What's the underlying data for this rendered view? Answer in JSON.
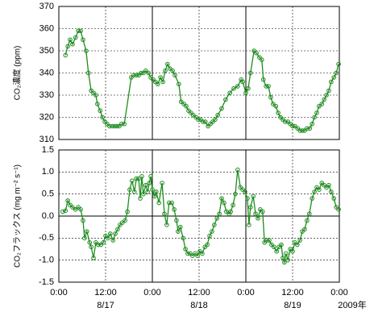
{
  "chart_data": [
    {
      "type": "line",
      "ylabel": "CO₂濃度 (ppm)",
      "color": "#1e8c1e",
      "xlim": [
        0,
        72
      ],
      "ylim": [
        310,
        370
      ],
      "yticks": [
        310,
        320,
        330,
        340,
        350,
        360,
        370
      ],
      "x": [
        1.7,
        2.3,
        2.9,
        3.5,
        4.3,
        5.0,
        5.6,
        6.2,
        7.0,
        7.6,
        8.3,
        8.9,
        9.5,
        9.9,
        10.6,
        11.2,
        11.8,
        12.4,
        13.0,
        13.7,
        14.3,
        14.9,
        15.5,
        16.1,
        16.8,
        18.6,
        19.2,
        19.9,
        20.5,
        21.1,
        21.7,
        22.3,
        23.0,
        23.6,
        24.2,
        24.8,
        25.4,
        26.1,
        26.7,
        27.3,
        27.9,
        28.5,
        29.2,
        29.8,
        30.8,
        31.4,
        32.1,
        32.7,
        33.3,
        33.9,
        34.5,
        35.2,
        35.8,
        36.4,
        37.0,
        37.6,
        38.3,
        38.9,
        39.5,
        40.1,
        40.8,
        41.8,
        42.8,
        43.9,
        44.9,
        45.9,
        46.8,
        47.2,
        48.0,
        48.6,
        49.2,
        50.1,
        50.7,
        51.5,
        52.1,
        52.5,
        53.2,
        53.8,
        54.4,
        55.0,
        55.7,
        56.3,
        56.9,
        57.5,
        58.1,
        58.8,
        59.4,
        60.0,
        60.6,
        61.3,
        61.9,
        62.5,
        63.1,
        63.7,
        64.4,
        65.0,
        65.6,
        66.2,
        66.8,
        67.5,
        68.1,
        68.7,
        69.3,
        69.9,
        70.6,
        71.2,
        71.8
      ],
      "values": [
        348,
        352,
        355,
        353,
        356,
        359,
        359,
        355,
        350,
        340,
        332,
        331,
        330,
        326,
        323,
        320,
        318,
        317,
        316,
        316,
        316,
        316,
        316,
        317,
        317,
        338,
        339,
        339,
        339,
        340,
        340,
        341,
        340,
        338,
        337,
        336,
        335,
        338,
        336,
        341,
        344,
        342,
        341,
        339,
        335,
        327,
        326,
        325,
        323,
        322,
        321,
        320,
        319,
        319,
        318,
        318,
        316,
        317,
        318,
        319,
        321,
        324,
        328,
        331,
        333,
        334,
        337,
        336,
        331,
        333,
        340,
        350,
        349,
        347,
        346,
        337,
        334,
        334,
        329,
        326,
        325,
        322,
        320,
        319,
        318,
        318,
        317,
        316,
        316,
        315,
        314,
        314,
        314,
        315,
        315,
        317,
        320,
        322,
        325,
        326,
        328,
        330,
        332,
        336,
        338,
        340,
        344
      ]
    },
    {
      "type": "line",
      "ylabel": "CO₂フラックス (mg m⁻² s⁻¹)",
      "color": "#1e8c1e",
      "xlabel": "2009年",
      "xlim": [
        0,
        72
      ],
      "ylim": [
        -1.5,
        1.5
      ],
      "yticks": [
        -1.5,
        {
          "value": -1,
          "label": "-1.0"
        },
        -0.5,
        {
          "value": 0,
          "label": "0.0"
        },
        0.5,
        {
          "value": 1,
          "label": "1.0"
        },
        1.5
      ],
      "xticks": [
        {
          "value": 0,
          "label": "0:00"
        },
        {
          "value": 12,
          "label": "12:00"
        },
        {
          "value": 24,
          "label": "0:00"
        },
        {
          "value": 36,
          "label": "12:00"
        },
        {
          "value": 48,
          "label": "0:00"
        },
        {
          "value": 60,
          "label": "12:00"
        },
        {
          "value": 72,
          "label": "0:00"
        }
      ],
      "x_date_labels": [
        {
          "value": 12,
          "label": "8/17"
        },
        {
          "value": 36,
          "label": "8/18"
        },
        {
          "value": 60,
          "label": "8/19"
        }
      ],
      "x": [
        1.0,
        1.7,
        2.3,
        2.9,
        3.5,
        4.3,
        5.0,
        5.6,
        6.2,
        6.6,
        7.2,
        7.9,
        8.3,
        8.9,
        9.5,
        10.1,
        10.8,
        11.4,
        12.0,
        12.6,
        13.2,
        13.9,
        14.5,
        15.1,
        15.7,
        16.3,
        17.0,
        17.6,
        18.2,
        18.8,
        19.4,
        19.9,
        20.5,
        20.9,
        21.3,
        21.7,
        22.3,
        22.8,
        23.2,
        23.6,
        24.0,
        24.6,
        25.0,
        25.7,
        26.5,
        27.1,
        27.7,
        28.3,
        29.0,
        29.6,
        30.2,
        30.6,
        31.2,
        31.9,
        32.5,
        33.1,
        33.7,
        34.3,
        35.0,
        35.6,
        36.2,
        36.8,
        37.5,
        38.1,
        38.7,
        39.3,
        39.9,
        40.6,
        41.2,
        41.8,
        42.4,
        43.0,
        43.7,
        44.1,
        44.7,
        45.3,
        45.9,
        46.6,
        47.2,
        47.8,
        48.4,
        48.8,
        49.2,
        49.9,
        50.5,
        51.1,
        51.7,
        52.3,
        52.8,
        53.4,
        54.0,
        54.6,
        55.2,
        55.9,
        56.5,
        57.1,
        57.5,
        57.9,
        58.3,
        58.8,
        59.4,
        60.0,
        60.6,
        61.2,
        61.9,
        62.5,
        63.1,
        63.7,
        64.3,
        65.0,
        65.6,
        66.2,
        66.8,
        67.5,
        68.1,
        68.7,
        69.3,
        69.9,
        70.6,
        71.2,
        71.8
      ],
      "values": [
        0.1,
        0.12,
        0.35,
        0.25,
        0.2,
        0.15,
        0.2,
        0.15,
        -0.1,
        -0.5,
        -0.35,
        -0.6,
        -0.7,
        -0.95,
        -0.6,
        -0.65,
        -0.65,
        -0.6,
        -0.45,
        -0.5,
        -0.4,
        -0.55,
        -0.4,
        -0.3,
        -0.2,
        -0.15,
        -0.1,
        0.1,
        0.6,
        0.8,
        0.55,
        0.85,
        0.85,
        0.4,
        0.9,
        0.5,
        0.7,
        0.55,
        0.75,
        0.9,
        0.6,
        0.45,
        0.55,
        0.3,
        0.75,
        0.05,
        -0.2,
        0.3,
        0.3,
        0.15,
        -0.1,
        -0.35,
        -0.25,
        -0.5,
        -0.75,
        -0.85,
        -0.85,
        -0.9,
        -0.85,
        -0.9,
        -0.8,
        -0.85,
        -0.7,
        -0.65,
        -0.45,
        -0.35,
        -0.2,
        -0.05,
        0.05,
        0.4,
        0.3,
        0.1,
        0.05,
        0.1,
        0.25,
        0.5,
        1.05,
        0.65,
        0.6,
        0.55,
        0.4,
        -0.2,
        0.2,
        0.45,
        0.05,
        -0.05,
        0.15,
        0.1,
        -0.6,
        -0.55,
        -0.55,
        -0.65,
        -0.7,
        -0.8,
        -0.7,
        -0.65,
        -0.95,
        -1.05,
        -0.85,
        -1.0,
        -0.75,
        -0.8,
        -0.6,
        -0.65,
        -0.55,
        -0.35,
        -0.3,
        -0.1,
        0.05,
        0.4,
        0.55,
        0.65,
        0.6,
        0.75,
        0.7,
        0.65,
        0.7,
        0.55,
        0.4,
        0.2,
        0.15
      ]
    }
  ]
}
